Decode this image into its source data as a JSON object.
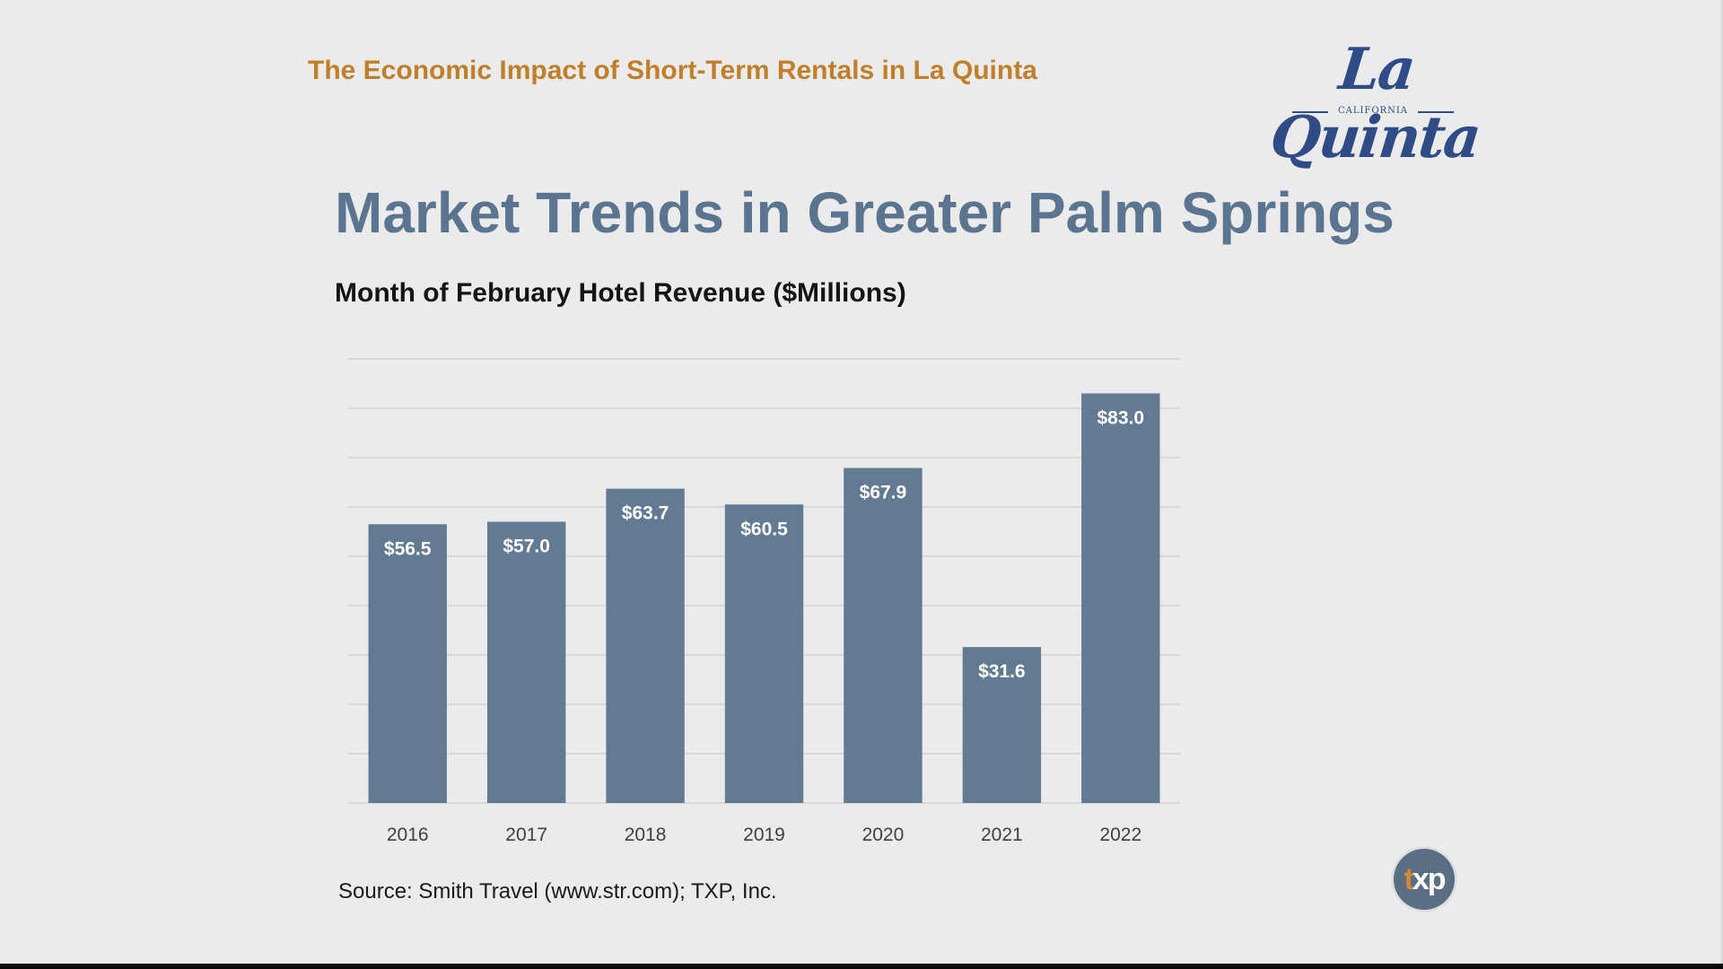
{
  "header": {
    "title": "The Economic Impact of Short-Term Rentals in La Quinta",
    "logo_text": "La Quinta",
    "logo_subtext": "CALIFORNIA"
  },
  "slide": {
    "title": "Market Trends in Greater Palm Springs",
    "source": "Source: Smith Travel (www.str.com); TXP, Inc."
  },
  "footer_logo": {
    "t": "t",
    "rest": "xp"
  },
  "colors": {
    "header": "#c07f2a",
    "title": "#5b7591",
    "bar": "#627b93",
    "grid": "#d8d8d8",
    "logo": "#2f4c87"
  },
  "chart_data": {
    "type": "bar",
    "title": "Month of February Hotel Revenue ($Millions)",
    "categories": [
      "2016",
      "2017",
      "2018",
      "2019",
      "2020",
      "2021",
      "2022"
    ],
    "values": [
      56.5,
      57.0,
      63.7,
      60.5,
      67.9,
      31.6,
      83.0
    ],
    "data_labels": [
      "$56.5",
      "$57.0",
      "$63.7",
      "$60.5",
      "$67.9",
      "$31.6",
      "$83.0"
    ],
    "xlabel": "",
    "ylabel": "",
    "ylim": [
      0,
      90
    ],
    "grid": true,
    "gridline_step": 10
  }
}
